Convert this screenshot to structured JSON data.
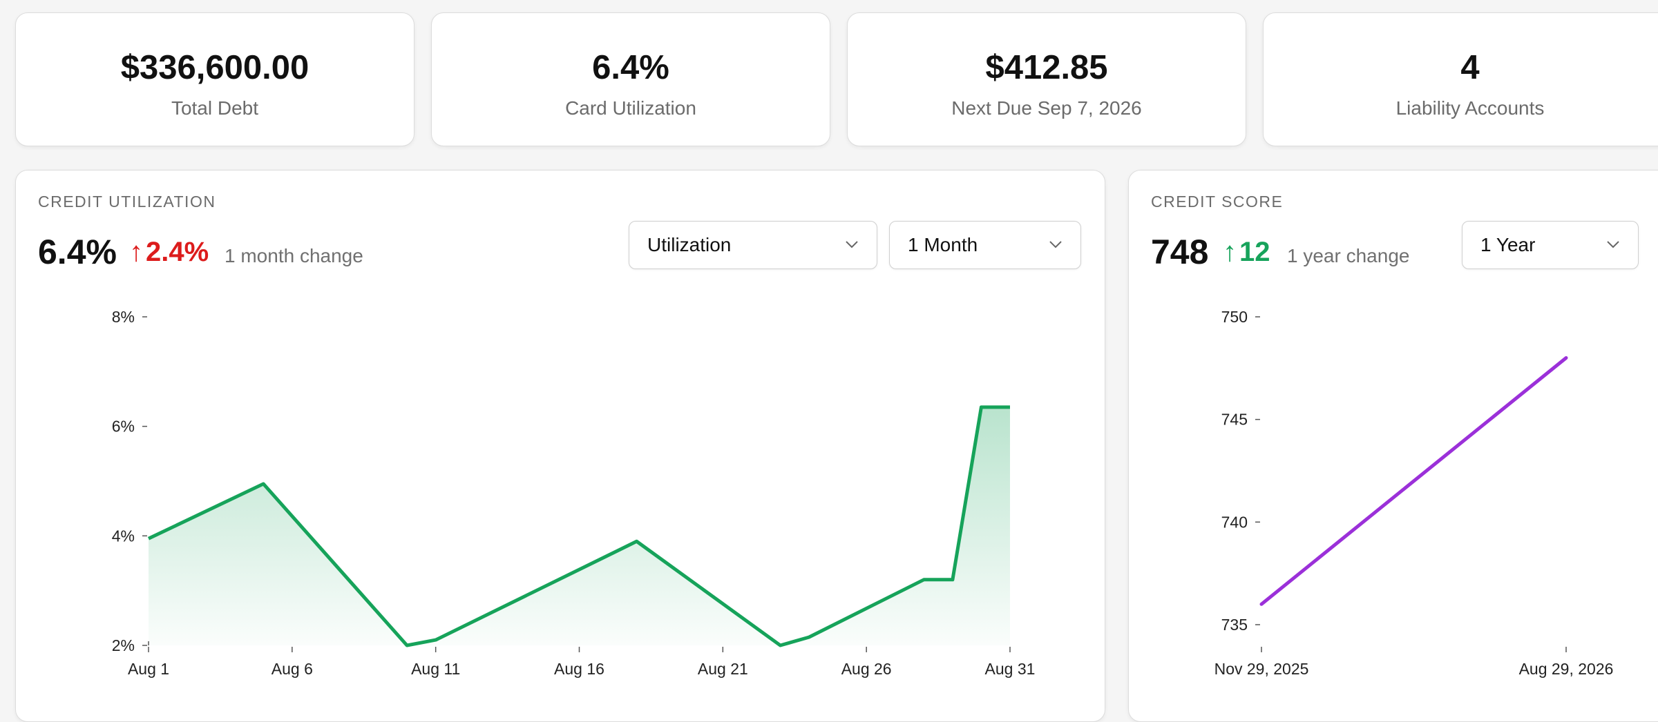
{
  "stats": [
    {
      "value": "$336,600.00",
      "label": "Total Debt"
    },
    {
      "value": "6.4%",
      "label": "Card Utilization"
    },
    {
      "value": "$412.85",
      "label": "Next Due Sep 7, 2026"
    },
    {
      "value": "4",
      "label": "Liability Accounts"
    }
  ],
  "utilization_panel": {
    "title": "CREDIT UTILIZATION",
    "value": "6.4%",
    "change_arrow": "↑",
    "change": "2.4%",
    "change_note": "1 month change",
    "metric_select": "Utilization",
    "range_select": "1 Month"
  },
  "score_panel": {
    "title": "CREDIT SCORE",
    "value": "748",
    "change_arrow": "↑",
    "change": "12",
    "change_note": "1 year change",
    "range_select": "1 Year"
  },
  "colors": {
    "negative": "#dc1c1c",
    "positive": "#17a35b",
    "utilization_line": "#16a35a",
    "score_line": "#9b30d9"
  },
  "chart_data": [
    {
      "type": "area",
      "title": "CREDIT UTILIZATION",
      "y_unit": "%",
      "ylim": [
        2,
        8
      ],
      "y_ticks": [
        2,
        4,
        6,
        8
      ],
      "y_tick_labels": [
        "2%",
        "4%",
        "6%",
        "8%"
      ],
      "xlim": [
        1,
        31
      ],
      "x_ticks": [
        1,
        6,
        11,
        16,
        21,
        26,
        31
      ],
      "x_tick_labels": [
        "Aug 1",
        "Aug 6",
        "Aug 11",
        "Aug 16",
        "Aug 21",
        "Aug 26",
        "Aug 31"
      ],
      "series": [
        {
          "x": [
            1,
            5,
            10,
            11,
            18,
            23,
            24,
            28,
            29,
            30,
            31
          ],
          "y": [
            3.95,
            4.95,
            2.0,
            2.1,
            3.9,
            2.0,
            2.15,
            3.2,
            3.2,
            6.35,
            6.35
          ]
        }
      ],
      "grid": false
    },
    {
      "type": "line",
      "title": "CREDIT SCORE",
      "ylim": [
        735,
        750
      ],
      "y_ticks": [
        735,
        740,
        745,
        750
      ],
      "x_tick_labels": [
        "Nov 29, 2025",
        "Aug 29, 2026"
      ],
      "series": [
        {
          "x": [
            "Nov 29, 2025",
            "Aug 29, 2026"
          ],
          "y": [
            736,
            748
          ]
        }
      ],
      "grid": false
    }
  ]
}
